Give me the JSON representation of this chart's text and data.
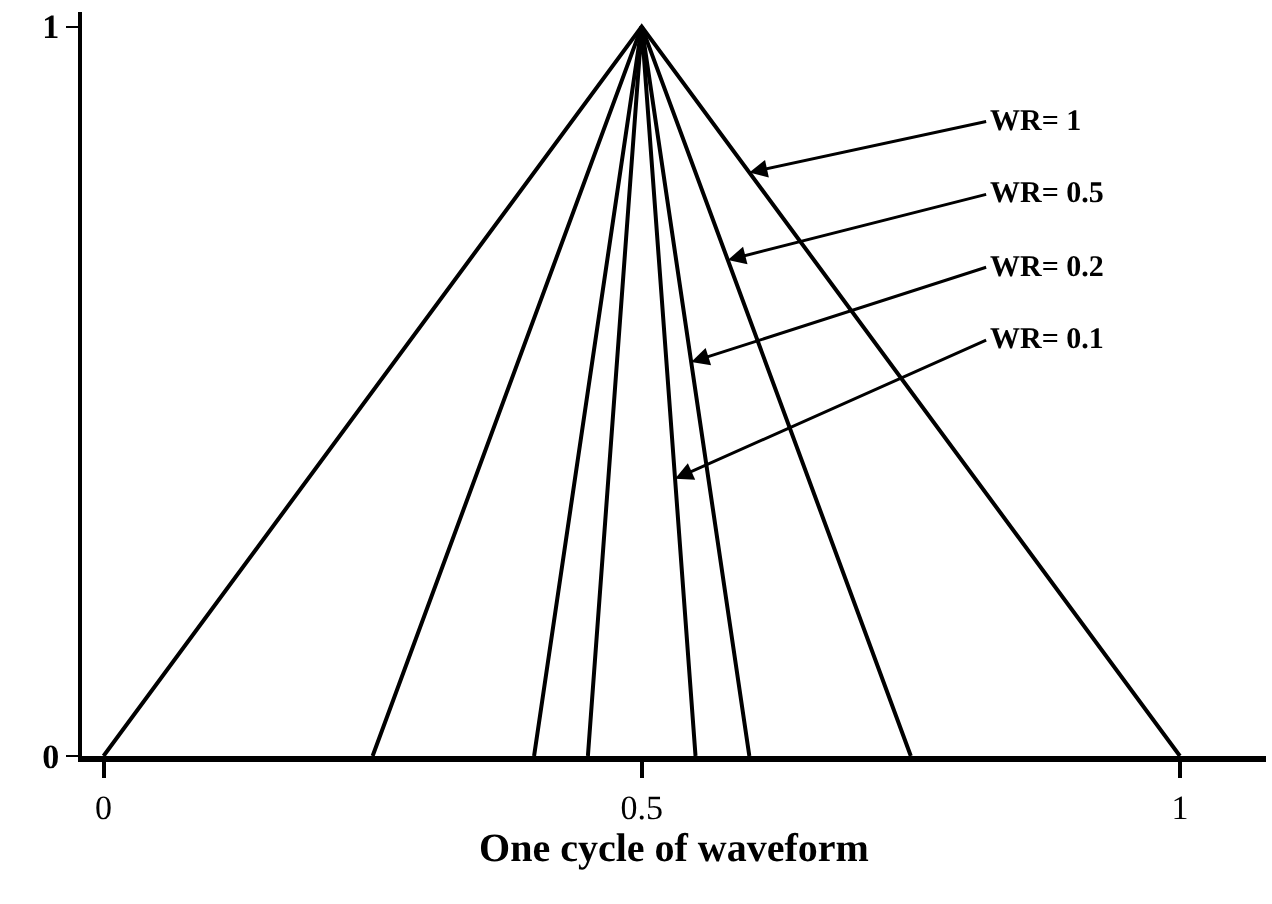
{
  "chart_data": {
    "type": "line",
    "xlabel": "One cycle of waveform",
    "series": [
      {
        "color": "#000000",
        "x": [
          0,
          0.5,
          1
        ],
        "values": [
          0,
          1,
          0
        ]
      },
      {
        "color": "#000000",
        "x": [
          0.25,
          0.5,
          0.75
        ],
        "values": [
          0,
          1,
          0
        ]
      },
      {
        "color": "#000000",
        "x": [
          0.4,
          0.5,
          0.6
        ],
        "values": [
          0,
          1,
          0
        ]
      },
      {
        "color": "#000000",
        "x": [
          0.45,
          0.5,
          0.55
        ],
        "values": [
          0,
          1,
          0
        ]
      }
    ],
    "annotations": [
      {
        "text": "WR= 1",
        "x": 0.6,
        "y": 0.8
      },
      {
        "text": "WR= 0.5",
        "x": 0.58,
        "y": 0.68
      },
      {
        "text": "WR= 0.2",
        "x": 0.546,
        "y": 0.54
      },
      {
        "text": "WR= 0.1",
        "x": 0.531,
        "y": 0.38
      }
    ],
    "xlim": [
      -0.02,
      1.08
    ],
    "xticks": [
      0,
      0.5,
      1
    ],
    "ylim": [
      0,
      1.02
    ],
    "yticks": [
      0,
      1
    ],
    "marker": "none",
    "line_style": "solid"
  }
}
